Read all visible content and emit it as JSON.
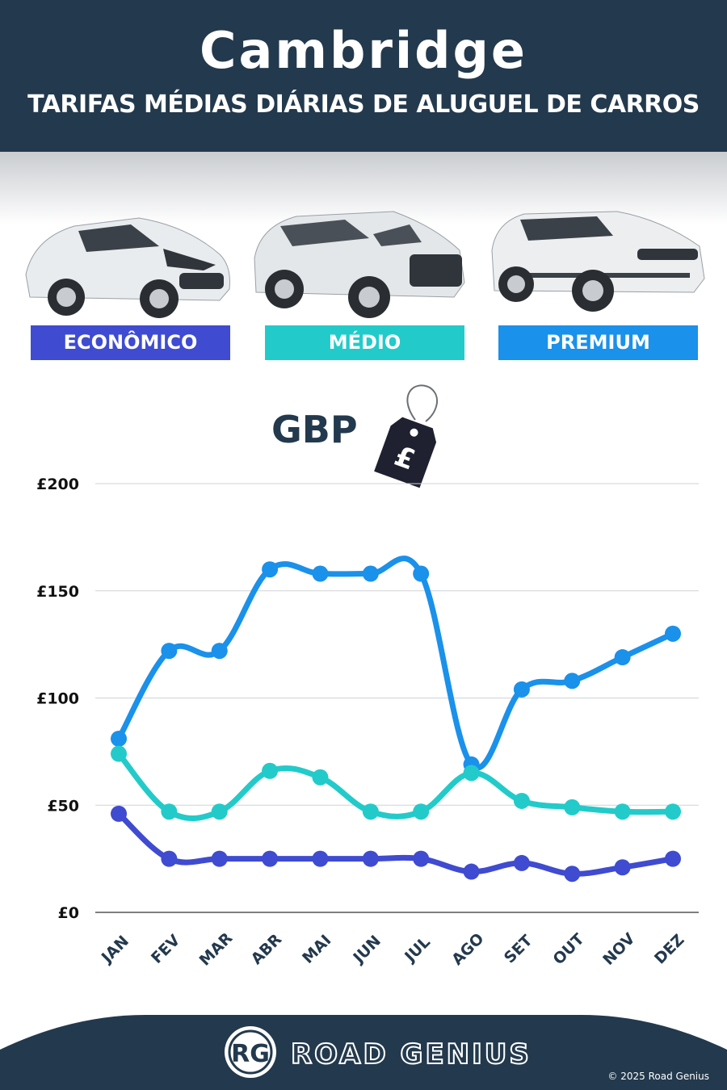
{
  "header": {
    "title": "Cambridge",
    "subtitle": "TARIFAS MÉDIAS DIÁRIAS DE ALUGUEL DE CARROS"
  },
  "categories": [
    {
      "label": "ECONÔMICO",
      "color": "#3f4bd0"
    },
    {
      "label": "MÉDIO",
      "color": "#22cbc9"
    },
    {
      "label": "PREMIUM",
      "color": "#1a91ea"
    }
  ],
  "currency": {
    "label": "GBP",
    "symbol": "£"
  },
  "chart_data": {
    "type": "line",
    "categories": [
      "JAN",
      "FEV",
      "MAR",
      "ABR",
      "MAI",
      "JUN",
      "JUL",
      "AGO",
      "SET",
      "OUT",
      "NOV",
      "DEZ"
    ],
    "y_ticks": [
      "£0",
      "£50",
      "£100",
      "£150",
      "£200"
    ],
    "y_tick_values": [
      0,
      50,
      100,
      150,
      200
    ],
    "ylim": [
      0,
      200
    ],
    "grid": true,
    "series": [
      {
        "name": "PREMIUM",
        "color": "#1a91ea",
        "values": [
          81,
          122,
          122,
          160,
          158,
          158,
          158,
          69,
          104,
          108,
          119,
          130
        ]
      },
      {
        "name": "MÉDIO",
        "color": "#22cbc9",
        "values": [
          74,
          47,
          47,
          66,
          63,
          47,
          47,
          65,
          52,
          49,
          47,
          47
        ]
      },
      {
        "name": "ECONÔMICO",
        "color": "#3f4bd0",
        "values": [
          46,
          25,
          25,
          25,
          25,
          25,
          25,
          19,
          23,
          18,
          21,
          25
        ]
      }
    ]
  },
  "footer": {
    "logo_mark": "RG",
    "brand": "ROAD GENIUS",
    "copyright": "© 2025 Road Genius",
    "background": "#23394d"
  }
}
